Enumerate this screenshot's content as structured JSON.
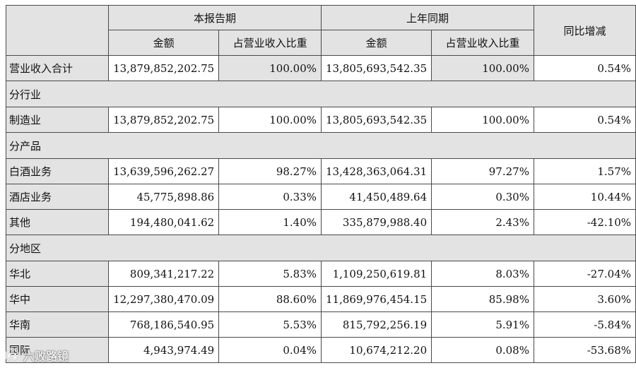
{
  "header": {
    "current_period": "本报告期",
    "prior_period": "上年同期",
    "yoy_change": "同比增减",
    "amount": "金额",
    "share_of_revenue": "占营业收入比重"
  },
  "total_row": {
    "label": "营业收入合计",
    "cur_amount": "13,879,852,202.75",
    "cur_share": "100.00%",
    "prev_amount": "13,805,693,542.35",
    "prev_share": "100.00%",
    "yoy": "0.54%"
  },
  "sections": [
    {
      "title": "分行业",
      "rows": [
        {
          "label": "制造业",
          "cur_amount": "13,879,852,202.75",
          "cur_share": "100.00%",
          "prev_amount": "13,805,693,542.35",
          "prev_share": "100.00%",
          "yoy": "0.54%"
        }
      ]
    },
    {
      "title": "分产品",
      "rows": [
        {
          "label": "白酒业务",
          "cur_amount": "13,639,596,262.27",
          "cur_share": "98.27%",
          "prev_amount": "13,428,363,064.31",
          "prev_share": "97.27%",
          "yoy": "1.57%"
        },
        {
          "label": "酒店业务",
          "cur_amount": "45,775,898.86",
          "cur_share": "0.33%",
          "prev_amount": "41,450,489.64",
          "prev_share": "0.30%",
          "yoy": "10.44%"
        },
        {
          "label": "其他",
          "cur_amount": "194,480,041.62",
          "cur_share": "1.40%",
          "prev_amount": "335,879,988.40",
          "prev_share": "2.43%",
          "yoy": "-42.10%"
        }
      ]
    },
    {
      "title": "分地区",
      "rows": [
        {
          "label": "华北",
          "cur_amount": "809,341,217.22",
          "cur_share": "5.83%",
          "prev_amount": "1,109,250,619.81",
          "prev_share": "8.03%",
          "yoy": "-27.04%"
        },
        {
          "label": "华中",
          "cur_amount": "12,297,380,470.09",
          "cur_share": "88.60%",
          "prev_amount": "11,869,976,454.15",
          "prev_share": "85.98%",
          "yoy": "3.60%"
        },
        {
          "label": "华南",
          "cur_amount": "768,186,540.95",
          "cur_share": "5.53%",
          "prev_amount": "815,792,256.19",
          "prev_share": "5.91%",
          "yoy": "-5.84%"
        },
        {
          "label": "国际",
          "cur_amount": "4,943,974.49",
          "cur_share": "0.04%",
          "prev_amount": "10,674,212.20",
          "prev_share": "0.08%",
          "yoy": "-53.68%"
        }
      ]
    }
  ],
  "watermark": {
    "text": "六败路镜",
    "icon": "logo-icon"
  }
}
